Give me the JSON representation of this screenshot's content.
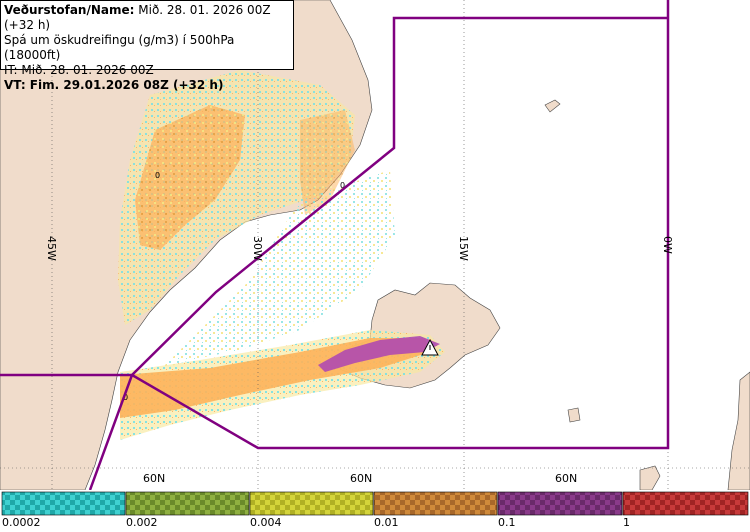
{
  "header": {
    "line1_prefix": "Veðurstofan/Name:",
    "line1_value": " Mið. 28. 01. 2026 00Z (+32 h)",
    "line2": "Spá um öskudreifingu (g/m3) í 500hPa (18000ft)",
    "line3": "IT: Mið. 28. 01. 2026 00Z",
    "line4": "VT: Fim. 29.01.2026 08Z (+32 h)"
  },
  "grid": {
    "lon_labels": [
      "45W",
      "30W",
      "15W",
      "0W"
    ],
    "lat_labels": [
      "60N",
      "60N",
      "60N"
    ]
  },
  "contour_labels": [
    "0",
    "0",
    "0"
  ],
  "legend": {
    "labels": [
      "0.0002",
      "0.002",
      "0.004",
      "0.01",
      "0.1",
      "1"
    ],
    "colors": [
      "#3fd1d1",
      "#8fb040",
      "#d4d43a",
      "#d08a3a",
      "#8a3a8a",
      "#c83a3a"
    ]
  },
  "colors": {
    "land": "#f0dccb",
    "sea": "#ffffff",
    "boundary": "#800080",
    "ash_orange": "#fdb35a",
    "ash_purple": "#b04ab0",
    "ash_cyan": "#7fe0e0",
    "ash_yellow": "#f5e27a"
  },
  "icons": {
    "volcano": "warning-triangle-icon"
  }
}
